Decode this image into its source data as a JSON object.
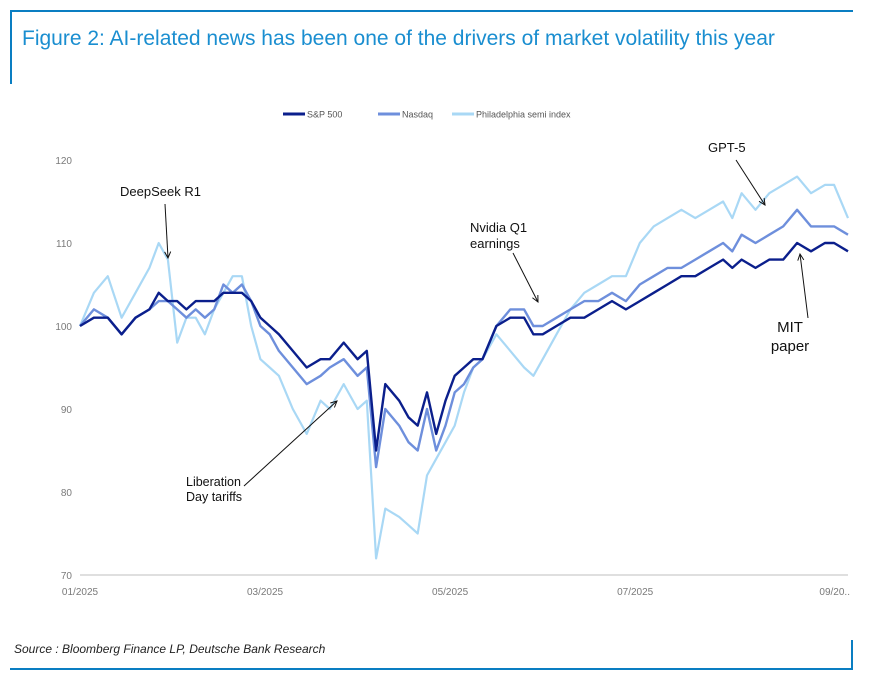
{
  "title": "Figure 2: AI-related news has been one of the drivers of market volatility this year",
  "source": "Source : Bloomberg Finance LP, Deutsche Bank Research",
  "colors": {
    "sp500": "#0b1f8c",
    "nasdaq": "#6e8fdc",
    "semi": "#a9d8f5",
    "accent": "#1a8ed0"
  },
  "chart_data": {
    "type": "line",
    "title": "Figure 2: AI-related news has been one of the drivers of market volatility this year",
    "xlabel": "",
    "ylabel": "",
    "xlim": [
      0,
      8.3
    ],
    "ylim": [
      70,
      120
    ],
    "yticks": [
      70,
      80,
      90,
      100,
      110,
      120
    ],
    "xticks": [
      {
        "x": 0,
        "label": "01/2025"
      },
      {
        "x": 2,
        "label": "03/2025"
      },
      {
        "x": 4,
        "label": "05/2025"
      },
      {
        "x": 6,
        "label": "07/2025"
      },
      {
        "x": 8.3,
        "label": "09/20.."
      }
    ],
    "legend_position": "top-center",
    "series": [
      {
        "name": "S&P 500",
        "x": [
          0,
          0.15,
          0.3,
          0.45,
          0.6,
          0.75,
          0.85,
          0.95,
          1.05,
          1.15,
          1.25,
          1.35,
          1.45,
          1.55,
          1.65,
          1.75,
          1.85,
          1.95,
          2.05,
          2.15,
          2.3,
          2.45,
          2.6,
          2.7,
          2.85,
          3.0,
          3.1,
          3.2,
          3.3,
          3.45,
          3.55,
          3.65,
          3.75,
          3.85,
          3.95,
          4.05,
          4.15,
          4.25,
          4.35,
          4.5,
          4.65,
          4.8,
          4.9,
          5.0,
          5.15,
          5.3,
          5.45,
          5.6,
          5.75,
          5.9,
          6.05,
          6.2,
          6.35,
          6.5,
          6.65,
          6.8,
          6.95,
          7.05,
          7.15,
          7.3,
          7.45,
          7.6,
          7.75,
          7.9,
          8.05,
          8.15,
          8.3
        ],
        "values": [
          100,
          101,
          101,
          99,
          101,
          102,
          104,
          103,
          103,
          102,
          103,
          103,
          103,
          104,
          104,
          104,
          103,
          101,
          100,
          99,
          97,
          95,
          96,
          96,
          98,
          96,
          97,
          85,
          93,
          91,
          89,
          88,
          92,
          87,
          91,
          94,
          95,
          96,
          96,
          100,
          101,
          101,
          99,
          99,
          100,
          101,
          101,
          102,
          103,
          102,
          103,
          104,
          105,
          106,
          106,
          107,
          108,
          107,
          108,
          107,
          108,
          108,
          110,
          109,
          110,
          110,
          109
        ]
      },
      {
        "name": "Nasdaq",
        "x": [
          0,
          0.15,
          0.3,
          0.45,
          0.6,
          0.75,
          0.85,
          0.95,
          1.05,
          1.15,
          1.25,
          1.35,
          1.45,
          1.55,
          1.65,
          1.75,
          1.85,
          1.95,
          2.05,
          2.15,
          2.3,
          2.45,
          2.6,
          2.7,
          2.85,
          3.0,
          3.1,
          3.2,
          3.3,
          3.45,
          3.55,
          3.65,
          3.75,
          3.85,
          3.95,
          4.05,
          4.15,
          4.25,
          4.35,
          4.5,
          4.65,
          4.8,
          4.9,
          5.0,
          5.15,
          5.3,
          5.45,
          5.6,
          5.75,
          5.9,
          6.05,
          6.2,
          6.35,
          6.5,
          6.65,
          6.8,
          6.95,
          7.05,
          7.15,
          7.3,
          7.45,
          7.6,
          7.75,
          7.9,
          8.05,
          8.15,
          8.3
        ],
        "values": [
          100,
          102,
          101,
          99,
          101,
          102,
          103,
          103,
          102,
          101,
          102,
          101,
          102,
          105,
          104,
          105,
          103,
          100,
          99,
          97,
          95,
          93,
          94,
          95,
          96,
          94,
          95,
          83,
          90,
          88,
          86,
          85,
          90,
          85,
          88,
          92,
          93,
          95,
          96,
          100,
          102,
          102,
          100,
          100,
          101,
          102,
          103,
          103,
          104,
          103,
          105,
          106,
          107,
          107,
          108,
          109,
          110,
          109,
          111,
          110,
          111,
          112,
          114,
          112,
          112,
          112,
          111
        ]
      },
      {
        "name": "Philadelphia semi index",
        "x": [
          0,
          0.15,
          0.3,
          0.45,
          0.6,
          0.75,
          0.85,
          0.95,
          1.05,
          1.15,
          1.25,
          1.35,
          1.45,
          1.55,
          1.65,
          1.75,
          1.85,
          1.95,
          2.05,
          2.15,
          2.3,
          2.45,
          2.6,
          2.7,
          2.85,
          3.0,
          3.1,
          3.2,
          3.3,
          3.45,
          3.55,
          3.65,
          3.75,
          3.85,
          3.95,
          4.05,
          4.15,
          4.25,
          4.35,
          4.5,
          4.65,
          4.8,
          4.9,
          5.0,
          5.15,
          5.3,
          5.45,
          5.6,
          5.75,
          5.9,
          6.05,
          6.2,
          6.35,
          6.5,
          6.65,
          6.8,
          6.95,
          7.05,
          7.15,
          7.3,
          7.45,
          7.6,
          7.75,
          7.9,
          8.05,
          8.15,
          8.3
        ],
        "values": [
          100,
          104,
          106,
          101,
          104,
          107,
          110,
          108,
          98,
          101,
          101,
          99,
          102,
          104,
          106,
          106,
          100,
          96,
          95,
          94,
          90,
          87,
          91,
          90,
          93,
          90,
          91,
          72,
          78,
          77,
          76,
          75,
          82,
          84,
          86,
          88,
          92,
          95,
          96,
          99,
          97,
          95,
          94,
          96,
          99,
          102,
          104,
          105,
          106,
          106,
          110,
          112,
          113,
          114,
          113,
          114,
          115,
          113,
          116,
          114,
          116,
          117,
          118,
          116,
          117,
          117,
          113
        ]
      }
    ],
    "annotations": [
      {
        "lines": [
          "DeepSeek R1"
        ]
      },
      {
        "lines": [
          "Liberation",
          "Day tariffs"
        ]
      },
      {
        "lines": [
          "Nvidia Q1",
          "earnings"
        ]
      },
      {
        "lines": [
          "GPT-5"
        ]
      },
      {
        "lines": [
          "MIT",
          "paper"
        ]
      }
    ]
  }
}
